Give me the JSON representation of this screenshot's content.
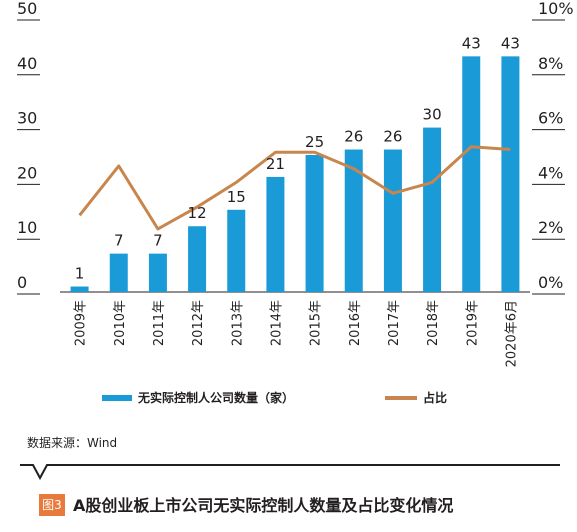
{
  "chart_data": {
    "type": "bar+line",
    "categories": [
      "2009年",
      "2010年",
      "2011年",
      "2012年",
      "2013年",
      "2014年",
      "2015年",
      "2016年",
      "2017年",
      "2018年",
      "2019年",
      "2020年6月"
    ],
    "series": [
      {
        "name": "无实际控制人公司数量（家）",
        "type": "bar",
        "axis": "left",
        "color": "#1a9ad6",
        "values": [
          1,
          7,
          7,
          12,
          15,
          21,
          25,
          26,
          26,
          30,
          43,
          43
        ]
      },
      {
        "name": "占比",
        "type": "line",
        "axis": "right",
        "color": "#c8864e",
        "values": [
          2.8,
          4.6,
          2.3,
          3.1,
          4.0,
          5.1,
          5.1,
          4.5,
          3.6,
          4.0,
          5.3,
          5.2
        ]
      }
    ],
    "y_left": {
      "ylim": [
        0,
        50
      ],
      "ticks": [
        "0",
        "10",
        "20",
        "30",
        "40",
        "50"
      ]
    },
    "y_right": {
      "ylim": [
        0,
        10
      ],
      "ticks": [
        "0%",
        "2%",
        "4%",
        "6%",
        "8%",
        "10%"
      ]
    },
    "data_labels": [
      "1",
      "7",
      "7",
      "12",
      "15",
      "21",
      "25",
      "26",
      "26",
      "30",
      "43",
      "43"
    ],
    "legend": {
      "placement": "bottom"
    },
    "grid": false
  },
  "legend": {
    "bar_label": "无实际控制人公司数量（家）",
    "line_label": "占比"
  },
  "source": "数据来源：Wind",
  "figure": {
    "badge": "图3",
    "title": "A股创业板上市公司无实际控制人数量及占比变化情况"
  },
  "colors": {
    "bar": "#1a9ad6",
    "line": "#c8864e",
    "badge": "#e87a3c"
  }
}
